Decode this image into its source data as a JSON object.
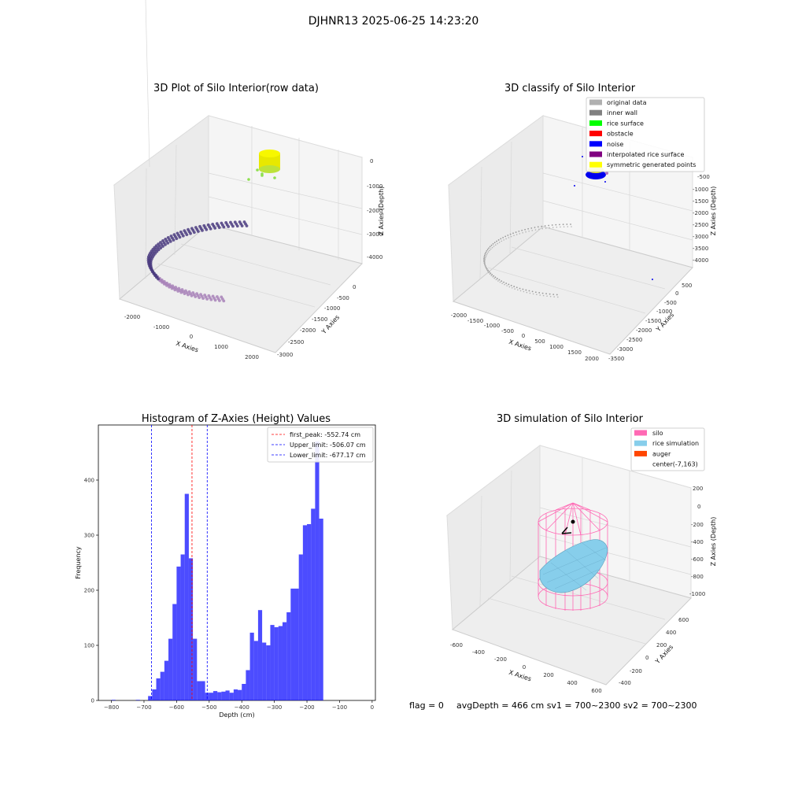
{
  "suptitle": "DJHNR13 2025-06-25 14:23:20",
  "panels": {
    "raw": {
      "title": "3D Plot of Silo Interior(row data)",
      "xlabel": "X Axies",
      "ylabel": "Y Axies",
      "zlabel": "Z Axies (Depth)",
      "x_ticks": [
        "-2000",
        "-1000",
        "0",
        "1000",
        "2000"
      ],
      "y_ticks": [
        "0",
        "-500",
        "-1000",
        "-1500",
        "-2000",
        "-2500",
        "-3000"
      ],
      "z_ticks": [
        "0",
        "-1000",
        "-2000",
        "-3000",
        "-4000"
      ]
    },
    "classify": {
      "title": "3D classify of Silo Interior",
      "xlabel": "X Axies",
      "ylabel": "Y Axies",
      "zlabel": "Z Axies (Depth)",
      "x_ticks": [
        "-2000",
        "-1500",
        "-1000",
        "-500",
        "0",
        "500",
        "1000",
        "1500",
        "2000"
      ],
      "y_ticks": [
        "500",
        "0",
        "-500",
        "-1000",
        "-1500",
        "-2000",
        "-2500",
        "-3000",
        "-3500"
      ],
      "z_ticks": [
        "-500",
        "-1000",
        "-1500",
        "-2000",
        "-2500",
        "-3000",
        "-3500",
        "-4000"
      ],
      "legend": [
        {
          "label": "original data",
          "color": "#b0b0b0"
        },
        {
          "label": "inner wall",
          "color": "#808080"
        },
        {
          "label": "rice surface",
          "color": "#00ff00"
        },
        {
          "label": "obstacle",
          "color": "#ff0000"
        },
        {
          "label": "noise",
          "color": "#0000ff"
        },
        {
          "label": "interpolated rice surface",
          "color": "#800080"
        },
        {
          "label": "symmetric generated points",
          "color": "#ffff00"
        }
      ]
    },
    "simulation": {
      "title": "3D simulation of Silo Interior",
      "xlabel": "X Axies",
      "ylabel": "Y Axies",
      "zlabel": "Z Axies (Depth)",
      "x_ticks": [
        "-600",
        "-400",
        "-200",
        "0",
        "200",
        "400",
        "600"
      ],
      "y_ticks": [
        "600",
        "400",
        "200",
        "0",
        "-200",
        "-400"
      ],
      "z_ticks": [
        "200",
        "0",
        "-200",
        "-400",
        "-600",
        "-800",
        "-1000"
      ],
      "legend": [
        {
          "label": "silo",
          "color": "#ff69b4"
        },
        {
          "label": "rice simulation",
          "color": "#87ceeb"
        },
        {
          "label": "auger",
          "color": "#ff4500"
        },
        {
          "label": "center(-7,163)",
          "color": ""
        }
      ]
    }
  },
  "footer": {
    "flag": "flag = 0",
    "stats": "avgDepth = 466 cm  sv1 = 700~2300  sv2 = 700~2300"
  },
  "colors": {
    "bar": "#0000ff",
    "first_peak": "#ff0000",
    "limit": "#0000ff",
    "silo": "#ff69b4",
    "rice": "#87ceeb"
  },
  "chart_data": [
    {
      "type": "bar",
      "title": "Histogram of Z-Axies (Height) Values",
      "xlabel": "Depth (cm)",
      "ylabel": "Frequency",
      "xlim": [
        -840,
        10
      ],
      "ylim": [
        0,
        500
      ],
      "x_ticks": [
        -800,
        -700,
        -600,
        -500,
        -400,
        -300,
        -200,
        -100,
        0
      ],
      "y_ticks": [
        0,
        100,
        200,
        300,
        400
      ],
      "bin_width": 12.5,
      "bins": [
        [
          -800,
          1
        ],
        [
          -725,
          1
        ],
        [
          -687.5,
          8
        ],
        [
          -675,
          20
        ],
        [
          -662.5,
          40
        ],
        [
          -650,
          52
        ],
        [
          -637.5,
          72
        ],
        [
          -625,
          112
        ],
        [
          -612.5,
          175
        ],
        [
          -600,
          243
        ],
        [
          -587.5,
          265
        ],
        [
          -575,
          375
        ],
        [
          -562.5,
          258
        ],
        [
          -550,
          112
        ],
        [
          -537.5,
          35
        ],
        [
          -525,
          35
        ],
        [
          -512.5,
          14
        ],
        [
          -500,
          14
        ],
        [
          -487.5,
          17
        ],
        [
          -475,
          15
        ],
        [
          -462.5,
          16
        ],
        [
          -450,
          18
        ],
        [
          -437.5,
          14
        ],
        [
          -425,
          20
        ],
        [
          -412.5,
          19
        ],
        [
          -400,
          30
        ],
        [
          -387.5,
          55
        ],
        [
          -375,
          123
        ],
        [
          -362.5,
          108
        ],
        [
          -350,
          164
        ],
        [
          -337.5,
          105
        ],
        [
          -325,
          100
        ],
        [
          -312.5,
          137
        ],
        [
          -300,
          133
        ],
        [
          -287.5,
          135
        ],
        [
          -275,
          142
        ],
        [
          -262.5,
          160
        ],
        [
          -250,
          203
        ],
        [
          -237.5,
          203
        ],
        [
          -225,
          265
        ],
        [
          -212.5,
          318
        ],
        [
          -200,
          320
        ],
        [
          -187.5,
          348
        ],
        [
          -175,
          470
        ],
        [
          -162.5,
          330
        ]
      ],
      "lines": [
        {
          "label": "first_peak: -552.74 cm",
          "value": -552.74,
          "color": "#ff0000"
        },
        {
          "label": "Upper_limit: -506.07 cm",
          "value": -506.07,
          "color": "#0000ff"
        },
        {
          "label": "Lower_limit: -677.17 cm",
          "value": -677.17,
          "color": "#0000ff"
        }
      ]
    }
  ]
}
